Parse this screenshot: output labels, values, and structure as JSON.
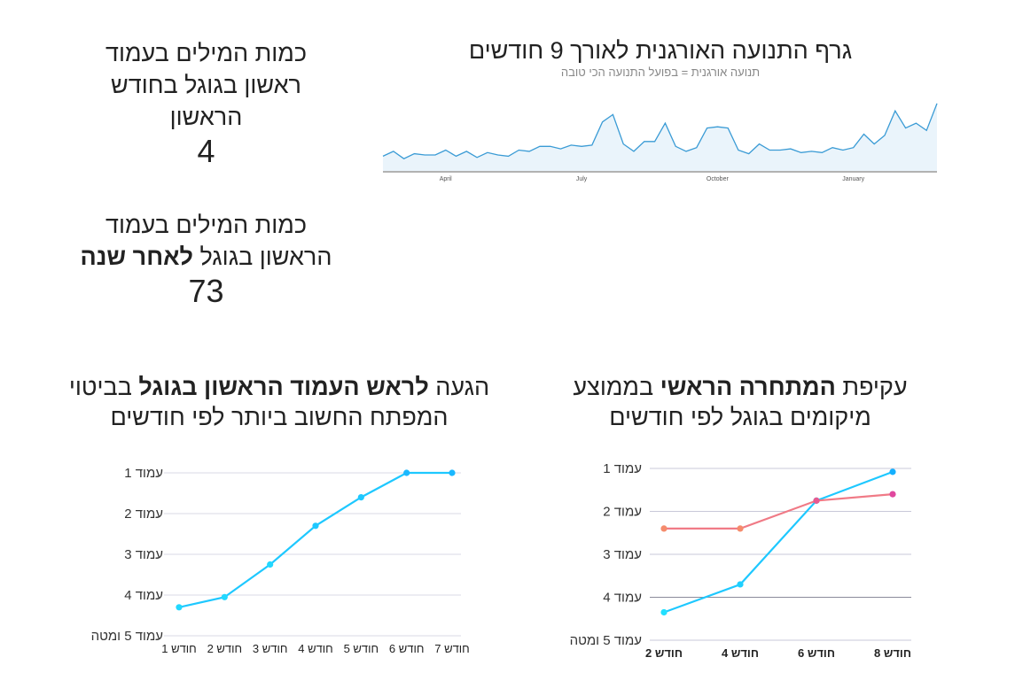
{
  "kpi1": {
    "title_lines": [
      "כמות המילים בעמוד",
      "ראשון בגוגל בחודש",
      "הראשון"
    ],
    "value": "4"
  },
  "kpi2": {
    "title_line1": "כמות המילים בעמוד",
    "title_line2_normal": "הראשון בגוגל ",
    "title_line2_bold": "לאחר שנה",
    "value": "73"
  },
  "colors": {
    "traffic_line": "#3a9bd5",
    "cyan": "#1ec8ff",
    "salmon": "#f58b6c",
    "pink": "#e0489e",
    "grid": "#d9d9e6",
    "text": "#222222"
  },
  "chart_data": [
    {
      "type": "area",
      "title": "גרף התנועה האורגנית לאורך 9 חודשים",
      "subtitle": "תנועה אורגנית = בפועל התנועה הכי טובה",
      "x_ticks": [
        "April",
        "July",
        "October",
        "January"
      ],
      "x_tick_index": [
        6,
        19,
        32,
        45
      ],
      "values": [
        12,
        16,
        10,
        14,
        13,
        13,
        17,
        12,
        16,
        11,
        15,
        13,
        12,
        17,
        16,
        20,
        20,
        18,
        21,
        20,
        21,
        40,
        46,
        22,
        16,
        24,
        24,
        39,
        20,
        16,
        19,
        35,
        36,
        35,
        17,
        14,
        22,
        17,
        17,
        18,
        15,
        16,
        15,
        19,
        17,
        19,
        30,
        22,
        29,
        49,
        35,
        39,
        33,
        55
      ],
      "grid": false
    },
    {
      "type": "line",
      "title_normal_1": "הגעה ",
      "title_bold": "לראש העמוד הראשון בגוגל",
      "title_normal_2": " בביטוי",
      "title_line2": "המפתח החשוב ביותר לפי חודשים",
      "categories": [
        "1 חודש",
        "2 חודש",
        "3 חודש",
        "4 חודש",
        "5 חודש",
        "6 חודש",
        "7 חודש"
      ],
      "y_ticks": [
        "עמוד 1",
        "עמוד 2",
        "עמוד 3",
        "עמוד 4",
        "עמוד 5 ומטה"
      ],
      "ylim": [
        1,
        5
      ],
      "y_reversed": true,
      "series": [
        {
          "values": [
            4.3,
            4.05,
            3.25,
            2.3,
            1.6,
            1.0,
            1.0
          ]
        }
      ],
      "grid": true
    },
    {
      "type": "line",
      "title_normal_1": "עקיפת ",
      "title_bold": "המתחרה הראשי",
      "title_normal_2": " בממוצע",
      "title_line2": "מיקומים בגוגל לפי חודשים",
      "categories": [
        "2 חודש",
        "4 חודש",
        "6 חודש",
        "8 חודש"
      ],
      "y_ticks": [
        "עמוד 1",
        "עמוד 2",
        "עמוד 3",
        "עמוד 4",
        "עמוד 5 ומטה"
      ],
      "ylim": [
        1,
        5
      ],
      "y_reversed": true,
      "series": [
        {
          "values": [
            4.35,
            3.7,
            1.75,
            1.08
          ]
        },
        {
          "values": [
            2.4,
            2.4,
            1.75,
            1.6
          ]
        }
      ],
      "grid": true
    }
  ]
}
